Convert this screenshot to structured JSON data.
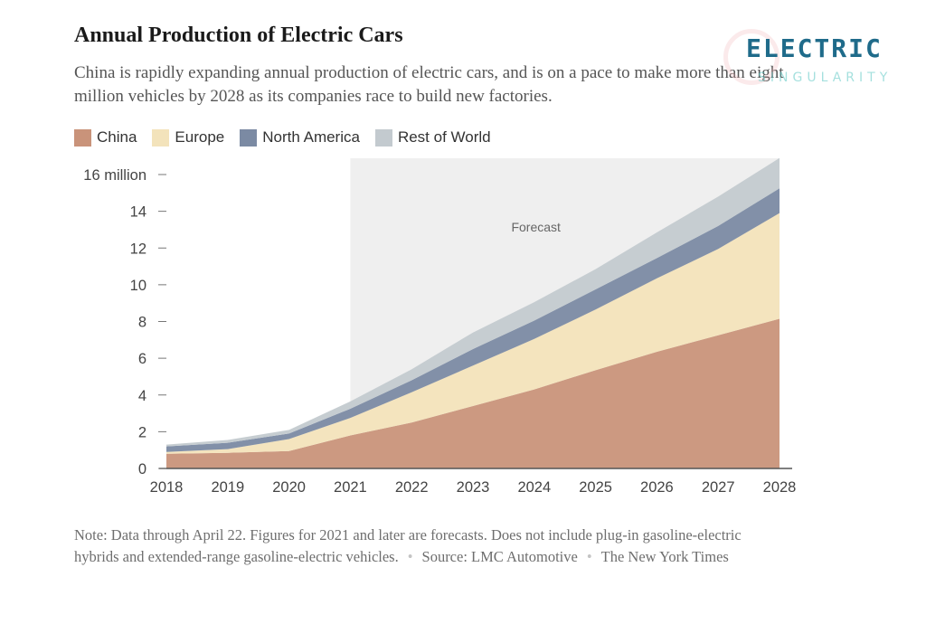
{
  "chart_data": {
    "type": "area",
    "stacked": true,
    "title": "Annual Production of Electric Cars",
    "subtitle": "China is rapidly expanding annual production of electric cars, and is on a pace to make more than eight million vehicles by 2028 as its companies race to build new factories.",
    "x": [
      2018,
      2019,
      2020,
      2021,
      2022,
      2023,
      2024,
      2025,
      2026,
      2027,
      2028
    ],
    "x_tick_labels": [
      "2018",
      "2019",
      "2020",
      "2021",
      "2022",
      "2023",
      "2024",
      "2025",
      "2026",
      "2027",
      "2028"
    ],
    "series": [
      {
        "name": "China",
        "color": "#c9937a",
        "values": [
          0.8,
          0.85,
          0.95,
          1.8,
          2.5,
          3.4,
          4.3,
          5.35,
          6.35,
          7.25,
          8.15
        ]
      },
      {
        "name": "Europe",
        "color": "#f3e3bb",
        "values": [
          0.1,
          0.2,
          0.65,
          0.95,
          1.65,
          2.2,
          2.75,
          3.3,
          4.0,
          4.7,
          5.75
        ]
      },
      {
        "name": "North America",
        "color": "#7b8aa3",
        "values": [
          0.3,
          0.35,
          0.3,
          0.5,
          0.65,
          0.9,
          1.0,
          1.1,
          1.1,
          1.25,
          1.35
        ]
      },
      {
        "name": "Rest of World",
        "color": "#c3cacf",
        "values": [
          0.1,
          0.15,
          0.2,
          0.4,
          0.6,
          0.9,
          1.0,
          1.1,
          1.4,
          1.6,
          1.65
        ]
      }
    ],
    "ylim": [
      0,
      16
    ],
    "y_ticks": [
      0,
      2,
      4,
      6,
      8,
      10,
      12,
      14,
      16
    ],
    "y_tick_labels": [
      "0",
      "2",
      "4",
      "6",
      "8",
      "10",
      "12",
      "14",
      "16 million"
    ],
    "forecast_region": {
      "start": 2021,
      "end": 2028,
      "label": "Forecast"
    },
    "legend_position": "top-left"
  },
  "legend": [
    {
      "label": "China",
      "color": "#c9937a"
    },
    {
      "label": "Europe",
      "color": "#f3e3bb"
    },
    {
      "label": "North America",
      "color": "#7b8aa3"
    },
    {
      "label": "Rest of World",
      "color": "#c3cacf"
    }
  ],
  "footer": {
    "note": "Note: Data through April 22. Figures for 2021 and later are forecasts. Does not include plug-in gasoline-electric hybrids and extended-range gasoline-electric vehicles.",
    "separator": "•",
    "source": "Source: LMC Automotive",
    "credit": "The New York Times"
  },
  "watermark": {
    "main": "ELECTRIC",
    "sub": "SINGULARITY",
    "main_color": "#1f6b8a",
    "sub_color": "#5cc8c4"
  },
  "colors": {
    "forecast_shade": "#efefef",
    "axis": "#555555"
  }
}
